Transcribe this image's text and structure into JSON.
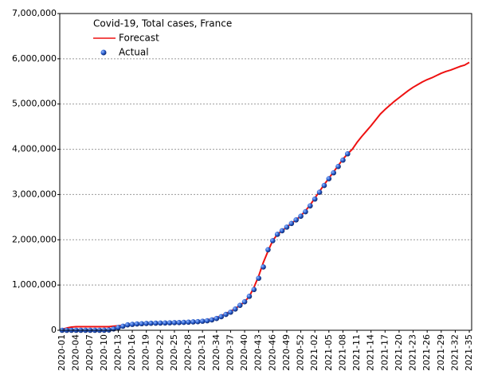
{
  "chart_data": {
    "type": "line",
    "title": "Covid-19, Total cases, France",
    "categories": [
      "2020-01",
      null,
      null,
      "2020-04",
      null,
      null,
      "2020-07",
      null,
      null,
      "2020-10",
      null,
      null,
      "2020-13",
      null,
      null,
      "2020-16",
      null,
      null,
      "2020-19",
      null,
      null,
      "2020-22",
      null,
      null,
      "2020-25",
      null,
      null,
      "2020-28",
      null,
      null,
      "2020-31",
      null,
      null,
      "2020-34",
      null,
      null,
      "2020-37",
      null,
      null,
      "2020-40",
      null,
      null,
      "2020-43",
      null,
      null,
      "2020-46",
      null,
      null,
      "2020-49",
      null,
      null,
      "2020-52",
      null,
      null,
      "2021-02",
      null,
      null,
      "2021-05",
      null,
      null,
      "2021-08",
      null,
      null,
      "2021-11",
      null,
      null,
      "2021-14",
      null,
      null,
      "2021-17",
      null,
      null,
      "2021-20",
      null,
      null,
      "2021-23",
      null,
      null,
      "2021-26",
      null,
      null,
      "2021-29",
      null,
      null,
      "2021-32",
      null,
      null,
      "2021-35"
    ],
    "series": [
      {
        "name": "Forecast",
        "color": "#ee1111",
        "marker": "line",
        "values": [
          20000,
          50000,
          70000,
          80000,
          80000,
          80000,
          80000,
          80000,
          80000,
          80000,
          80000,
          90000,
          100000,
          110000,
          120000,
          130000,
          140000,
          145000,
          150000,
          155000,
          160000,
          160000,
          165000,
          170000,
          170000,
          175000,
          180000,
          185000,
          190000,
          200000,
          210000,
          230000,
          250000,
          280000,
          320000,
          370000,
          420000,
          480000,
          550000,
          630000,
          750000,
          950000,
          1200000,
          1500000,
          1750000,
          1980000,
          2120000,
          2200000,
          2280000,
          2360000,
          2440000,
          2530000,
          2640000,
          2770000,
          2920000,
          3070000,
          3220000,
          3360000,
          3500000,
          3640000,
          3780000,
          3900000,
          4000000,
          4150000,
          4280000,
          4400000,
          4520000,
          4650000,
          4780000,
          4880000,
          4970000,
          5060000,
          5140000,
          5220000,
          5300000,
          5370000,
          5430000,
          5490000,
          5540000,
          5580000,
          5630000,
          5680000,
          5720000,
          5750000,
          5790000,
          5830000,
          5860000,
          5920000
        ]
      },
      {
        "name": "Actual",
        "color": "#1f4fbf",
        "marker": "sphere",
        "values": [
          0,
          0,
          0,
          0,
          0,
          0,
          0,
          0,
          0,
          1000,
          5000,
          30000,
          60000,
          90000,
          120000,
          130000,
          140000,
          145000,
          150000,
          155000,
          157000,
          160000,
          162000,
          165000,
          168000,
          170000,
          175000,
          180000,
          185000,
          190000,
          200000,
          210000,
          230000,
          260000,
          300000,
          350000,
          400000,
          470000,
          550000,
          630000,
          750000,
          900000,
          1150000,
          1400000,
          1780000,
          1980000,
          2120000,
          2200000,
          2280000,
          2360000,
          2440000,
          2520000,
          2620000,
          2750000,
          2900000,
          3050000,
          3200000,
          3350000,
          3480000,
          3620000,
          3760000,
          3900000,
          null,
          null,
          null,
          null,
          null,
          null,
          null,
          null,
          null,
          null,
          null,
          null,
          null,
          null,
          null,
          null,
          null,
          null,
          null,
          null,
          null,
          null,
          null,
          null,
          null,
          null
        ]
      }
    ],
    "ylim": [
      0,
      7000000
    ],
    "yticks": [
      0,
      {
        "value": 1000000,
        "label": "1,000,000"
      },
      {
        "value": 2000000,
        "label": "2,000,000"
      },
      {
        "value": 3000000,
        "label": "3,000,000"
      },
      {
        "value": 4000000,
        "label": "4,000,000"
      },
      {
        "value": 5000000,
        "label": "5,000,000"
      },
      {
        "value": 6000000,
        "label": "6,000,000"
      },
      {
        "value": 7000000,
        "label": "7,000,000"
      }
    ],
    "grid": true
  }
}
